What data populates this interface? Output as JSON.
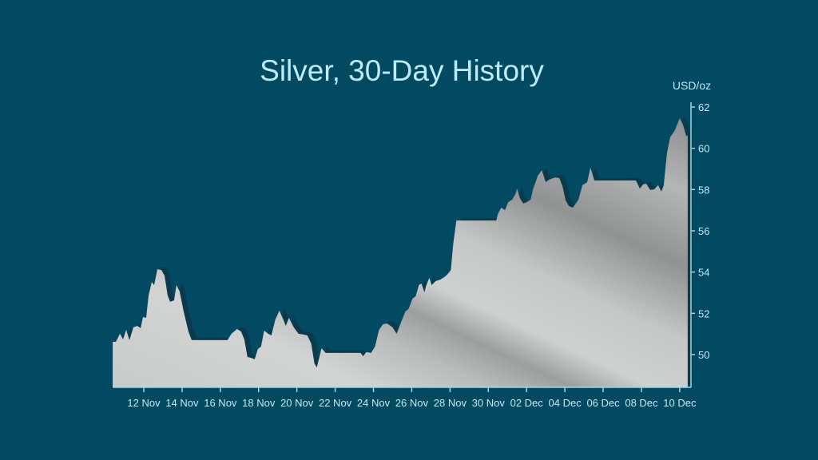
{
  "chart_data": {
    "type": "area",
    "title": "Silver, 30-Day History",
    "ylabel": "USD/oz",
    "xlabel": "",
    "ylim": [
      48.4,
      62
    ],
    "yticks": [
      50,
      52,
      54,
      56,
      58,
      60,
      62
    ],
    "xticks": [
      "12 Nov",
      "14 Nov",
      "16 Nov",
      "18 Nov",
      "20 Nov",
      "22 Nov",
      "24 Nov",
      "26 Nov",
      "28 Nov",
      "30 Nov",
      "02 Dec",
      "04 Dec",
      "06 Dec",
      "08 Dec",
      "10 Dec"
    ],
    "grid": false,
    "legend": "none",
    "colors": {
      "background": "#024a62",
      "fill_light": "#d4d6d6",
      "fill_dark": "#8e9091",
      "shadow": "#0d3a4b",
      "text": "#bdebf6"
    },
    "series": [
      {
        "x": [
          "10 Nov 09:00",
          "10 Nov 13:00",
          "10 Nov 18:00",
          "10 Nov 22:00",
          "11 Nov 02:00",
          "11 Nov 06:00",
          "11 Nov 11:00",
          "11 Nov 16:00",
          "11 Nov 20:00",
          "11 Nov 23:00",
          "12 Nov 03:00",
          "12 Nov 06:00",
          "12 Nov 10:00",
          "12 Nov 13:00",
          "12 Nov 17:00",
          "12 Nov 22:00",
          "13 Nov 02:00",
          "13 Nov 06:00",
          "13 Nov 09:00",
          "13 Nov 14:00",
          "13 Nov 17:00",
          "13 Nov 21:00",
          "14 Nov 02:00",
          "14 Nov 08:00",
          "14 Nov 12:00",
          "16 Nov 09:00",
          "16 Nov 14:00",
          "16 Nov 21:00",
          "17 Nov 02:00",
          "17 Nov 06:00",
          "17 Nov 10:00",
          "17 Nov 14:00",
          "17 Nov 19:00",
          "17 Nov 23:00",
          "18 Nov 03:00",
          "18 Nov 07:00",
          "18 Nov 12:00",
          "18 Nov 16:00",
          "18 Nov 21:00",
          "19 Nov 02:00",
          "19 Nov 07:00",
          "19 Nov 10:00",
          "19 Nov 14:00",
          "19 Nov 20:00",
          "20 Nov 02:00",
          "20 Nov 08:00",
          "20 Nov 13:00",
          "20 Nov 18:00",
          "20 Nov 22:00",
          "21 Nov 01:00",
          "21 Nov 07:00",
          "21 Nov 12:00",
          "23 Nov 08:00",
          "23 Nov 11:00",
          "23 Nov 15:00",
          "23 Nov 21:00",
          "24 Nov 02:00",
          "24 Nov 07:00",
          "24 Nov 12:00",
          "24 Nov 17:00",
          "25 Nov 00:00",
          "25 Nov 05:00",
          "25 Nov 10:00",
          "25 Nov 16:00",
          "25 Nov 20:00",
          "26 Nov 01:00",
          "26 Nov 05:00",
          "26 Nov 09:00",
          "26 Nov 12:00",
          "26 Nov 16:00",
          "26 Nov 18:00",
          "26 Nov 22:00",
          "27 Nov 01:00",
          "27 Nov 06:00",
          "27 Nov 12:00",
          "27 Nov 18:00",
          "27 Nov 22:00",
          "28 Nov 01:00",
          "28 Nov 04:00",
          "28 Nov 08:00",
          "30 Nov 10:00",
          "30 Nov 12:00",
          "30 Nov 16:00",
          "30 Nov 21:00",
          "01 Dec 01:00",
          "01 Dec 06:00",
          "01 Dec 10:00",
          "01 Dec 12:00",
          "01 Dec 16:00",
          "01 Dec 20:00",
          "02 Dec 00:00",
          "02 Dec 05:00",
          "02 Dec 08:00",
          "02 Dec 14:00",
          "02 Dec 19:00",
          "03 Dec 00:00",
          "03 Dec 04:00",
          "03 Dec 12:00",
          "03 Dec 17:00",
          "03 Dec 21:00",
          "04 Dec 01:00",
          "04 Dec 05:00",
          "04 Dec 10:00",
          "04 Dec 17:00",
          "04 Dec 22:00",
          "05 Dec 04:00",
          "05 Dec 08:00",
          "05 Dec 13:00",
          "07 Dec 17:00",
          "07 Dec 22:00",
          "08 Dec 02:00",
          "08 Dec 06:00",
          "08 Dec 11:00",
          "08 Dec 16:00",
          "08 Dec 21:00",
          "09 Dec 01:00",
          "09 Dec 04:00",
          "09 Dec 08:00",
          "09 Dec 12:00",
          "09 Dec 18:00",
          "10 Dec 00:00",
          "10 Dec 04:00",
          "10 Dec 08:00",
          "10 Dec 10:00"
        ],
        "y": [
          50.62,
          50.62,
          51.01,
          50.74,
          51.2,
          50.7,
          51.32,
          51.39,
          51.28,
          51.82,
          51.78,
          52.86,
          53.52,
          53.37,
          54.14,
          54.1,
          53.83,
          52.86,
          52.56,
          52.63,
          53.37,
          53.06,
          52.09,
          51.12,
          50.7,
          50.7,
          51.01,
          51.24,
          51.12,
          50.74,
          49.88,
          49.85,
          49.77,
          50.27,
          50.39,
          51.16,
          51.01,
          50.93,
          51.7,
          52.13,
          51.7,
          51.39,
          51.78,
          51.32,
          51.01,
          50.97,
          50.93,
          50.54,
          49.57,
          49.38,
          50.31,
          50.08,
          50.08,
          49.92,
          50.12,
          50.08,
          50.39,
          51.2,
          51.47,
          51.51,
          51.32,
          51.01,
          51.51,
          52.09,
          52.21,
          52.71,
          52.83,
          53.37,
          53.45,
          53.02,
          53.33,
          53.72,
          53.37,
          53.56,
          53.64,
          53.79,
          53.95,
          54.1,
          55.38,
          56.5,
          56.5,
          56.81,
          57.12,
          57.01,
          57.39,
          57.51,
          57.78,
          58.05,
          57.55,
          57.32,
          57.39,
          57.51,
          58.01,
          58.67,
          58.94,
          58.36,
          58.48,
          58.59,
          58.56,
          58.17,
          57.47,
          57.2,
          57.12,
          57.51,
          58.21,
          58.36,
          59.06,
          58.44,
          58.44,
          58.05,
          58.25,
          58.28,
          57.98,
          58.01,
          58.21,
          57.9,
          58.21,
          59.76,
          60.53,
          60.88,
          61.46,
          61.15,
          60.61,
          60.61
        ]
      }
    ]
  }
}
